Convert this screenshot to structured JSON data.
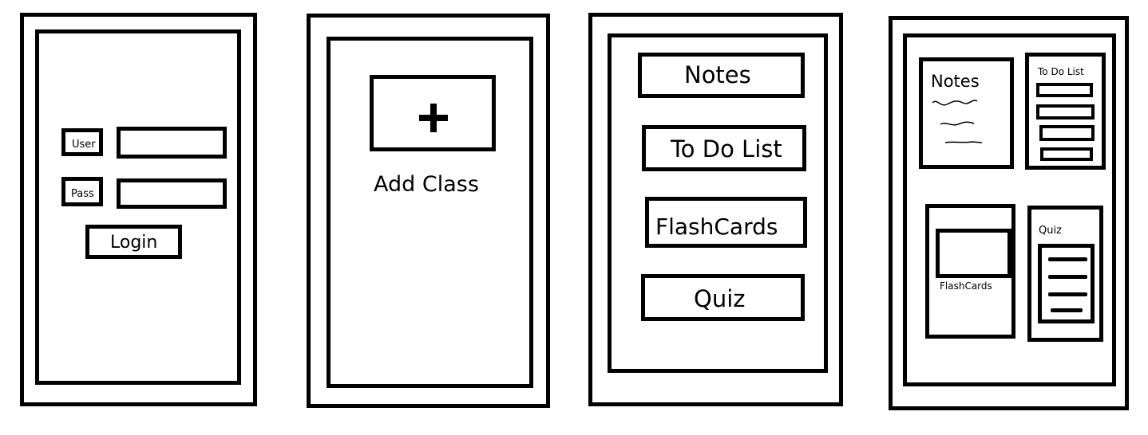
{
  "login_screen": {
    "user_label": "User",
    "pass_label": "Pass",
    "login_button": "Login"
  },
  "add_class_screen": {
    "add_icon": "plus-icon",
    "add_class_label": "Add Class"
  },
  "menu_screen": {
    "items": [
      "Notes",
      "To Do List",
      "FlashCards",
      "Quiz"
    ]
  },
  "dashboard_screen": {
    "notes_title": "Notes",
    "todo_title": "To Do List",
    "flashcards_label": "FlashCards",
    "quiz_title": "Quiz"
  }
}
